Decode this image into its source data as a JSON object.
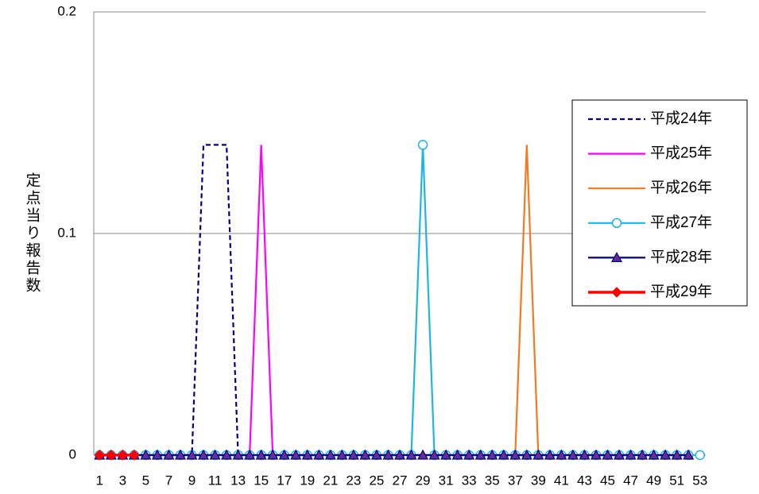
{
  "chart_data": {
    "type": "line",
    "y_label": "定点当り報告数",
    "categories": [
      1,
      null,
      3,
      null,
      5,
      null,
      7,
      null,
      9,
      null,
      11,
      null,
      13,
      null,
      15,
      null,
      17,
      null,
      19,
      null,
      21,
      null,
      23,
      null,
      25,
      null,
      27,
      null,
      29,
      null,
      31,
      null,
      33,
      null,
      35,
      null,
      37,
      null,
      39,
      null,
      41,
      null,
      43,
      null,
      45,
      null,
      47,
      null,
      49,
      null,
      51,
      null,
      53
    ],
    "ylim": [
      0,
      0.2
    ],
    "yticks": [
      0,
      0.1,
      0.2
    ],
    "grid": true,
    "legend": "right",
    "series": [
      {
        "name": "平成24年",
        "color": "#000080",
        "dash": true,
        "marker": null,
        "values": [
          0,
          0,
          0,
          0,
          0,
          0,
          0,
          0,
          0,
          0.14,
          0.14,
          0.14,
          0,
          0,
          0,
          0,
          0,
          0,
          0,
          0,
          0,
          0,
          0,
          0,
          0,
          0,
          0,
          0,
          0,
          0,
          0,
          0,
          0,
          0,
          0,
          0,
          0,
          0,
          0,
          0,
          0,
          0,
          0,
          0,
          0,
          0,
          0,
          0,
          0,
          0,
          0,
          0,
          null
        ]
      },
      {
        "name": "平成25年",
        "color": "#ff00ff",
        "dash": false,
        "marker": null,
        "values": [
          0,
          0,
          0,
          0,
          0,
          0,
          0,
          0,
          0,
          0,
          0,
          0,
          0,
          0,
          0.14,
          0,
          0,
          0,
          0,
          0,
          0,
          0,
          0,
          0,
          0,
          0,
          0,
          0,
          0,
          0,
          0,
          0,
          0,
          0,
          0,
          0,
          0,
          0,
          0,
          0,
          0,
          0,
          0,
          0,
          0,
          0,
          0,
          0,
          0,
          0,
          0,
          0,
          null
        ]
      },
      {
        "name": "平成26年",
        "color": "#f47920",
        "dash": false,
        "marker": null,
        "values": [
          0,
          0,
          0,
          0,
          0,
          0,
          0,
          0,
          0,
          0,
          0,
          0,
          0,
          0,
          0,
          0,
          0,
          0,
          0,
          0,
          0,
          0,
          0,
          0,
          0,
          0,
          0,
          0,
          0,
          0,
          0,
          0,
          0,
          0,
          0,
          0,
          0,
          0.14,
          0,
          0,
          0,
          0,
          0,
          0,
          0,
          0,
          0,
          0,
          0,
          0,
          0,
          0,
          null
        ]
      },
      {
        "name": "平成27年",
        "color": "#1fb4e8",
        "dash": false,
        "marker": "circle",
        "values": [
          0,
          0,
          0,
          0,
          0,
          0,
          0,
          0,
          0,
          0,
          0,
          0,
          0,
          0,
          0,
          0,
          0,
          0,
          0,
          0,
          0,
          0,
          0,
          0,
          0,
          0,
          0,
          0,
          0.14,
          0,
          0,
          0,
          0,
          0,
          0,
          0,
          0,
          0,
          0,
          0,
          0,
          0,
          0,
          0,
          0,
          0,
          0,
          0,
          0,
          0,
          0,
          0,
          0
        ]
      },
      {
        "name": "平成28年",
        "color": "#000080",
        "dash": false,
        "marker": "triangle",
        "values": [
          0,
          0,
          0,
          0,
          0,
          0,
          0,
          0,
          0,
          0,
          0,
          0,
          0,
          0,
          0,
          0,
          0,
          0,
          0,
          0,
          0,
          0,
          0,
          0,
          0,
          0,
          0,
          0,
          0,
          0,
          0,
          0,
          0,
          0,
          0,
          0,
          0,
          0,
          0,
          0,
          0,
          0,
          0,
          0,
          0,
          0,
          0,
          0,
          0,
          0,
          0,
          0,
          null
        ]
      },
      {
        "name": "平成29年",
        "color": "#ff0000",
        "dash": false,
        "marker": "diamond",
        "values": [
          0,
          0,
          0,
          0,
          null,
          null,
          null,
          null,
          null,
          null,
          null,
          null,
          null,
          null,
          null,
          null,
          null,
          null,
          null,
          null,
          null,
          null,
          null,
          null,
          null,
          null,
          null,
          null,
          null,
          null,
          null,
          null,
          null,
          null,
          null,
          null,
          null,
          null,
          null,
          null,
          null,
          null,
          null,
          null,
          null,
          null,
          null,
          null,
          null,
          null,
          null,
          null,
          null
        ]
      }
    ]
  }
}
